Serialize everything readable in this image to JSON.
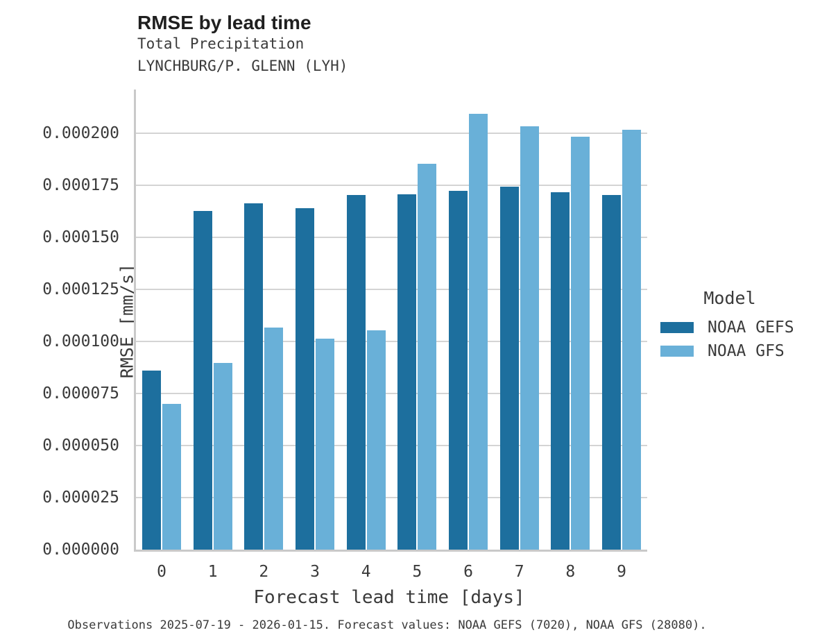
{
  "figure": {
    "title": "RMSE by lead time",
    "subtitle1": "Total Precipitation",
    "subtitle2": "LYNCHBURG/P. GLENN (LYH)",
    "caption": "Observations 2025-07-19 - 2026-01-15. Forecast values: NOAA GEFS (7020), NOAA GFS (28080)."
  },
  "colors": {
    "gefs": "#1d6f9e",
    "gfs": "#69b0d8",
    "gridline": "#d4d4d4",
    "spine": "#c9c9c9",
    "text": "#3a3a3a"
  },
  "chart_data": {
    "type": "bar",
    "title": "RMSE by lead time",
    "subtitle": [
      "Total Precipitation",
      "LYNCHBURG/P. GLENN (LYH)"
    ],
    "xlabel": "Forecast lead time [days]",
    "ylabel": "RMSE [mm/s]",
    "categories": [
      "0",
      "1",
      "2",
      "3",
      "4",
      "5",
      "6",
      "7",
      "8",
      "9"
    ],
    "series": [
      {
        "name": "NOAA GEFS",
        "color": "#1d6f9e",
        "values": [
          8.6e-05,
          0.0001628,
          0.0001665,
          0.000164,
          0.0001705,
          0.0001708,
          0.0001722,
          0.0001742,
          0.0001717,
          0.0001702
        ]
      },
      {
        "name": "NOAA GFS",
        "color": "#69b0d8",
        "values": [
          7e-05,
          8.98e-05,
          0.0001066,
          0.0001014,
          0.0001053,
          0.0001855,
          0.0002095,
          0.0002032,
          0.0001985,
          0.0002016
        ]
      }
    ],
    "ylim": [
      0,
      0.000221
    ],
    "yticks": [
      0.0,
      2.5e-05,
      5e-05,
      7.5e-05,
      0.0001,
      0.000125,
      0.00015,
      0.000175,
      0.0002
    ],
    "ytick_labels": [
      "0.000000",
      "0.000025",
      "0.000050",
      "0.000075",
      "0.000100",
      "0.000125",
      "0.000150",
      "0.000175",
      "0.000200"
    ],
    "grid": "horizontal",
    "legend": {
      "title": "Model",
      "position": "right",
      "entries": [
        "NOAA GEFS",
        "NOAA GFS"
      ]
    },
    "caption": "Observations 2025-07-19 - 2026-01-15. Forecast values: NOAA GEFS (7020), NOAA GFS (28080)."
  }
}
